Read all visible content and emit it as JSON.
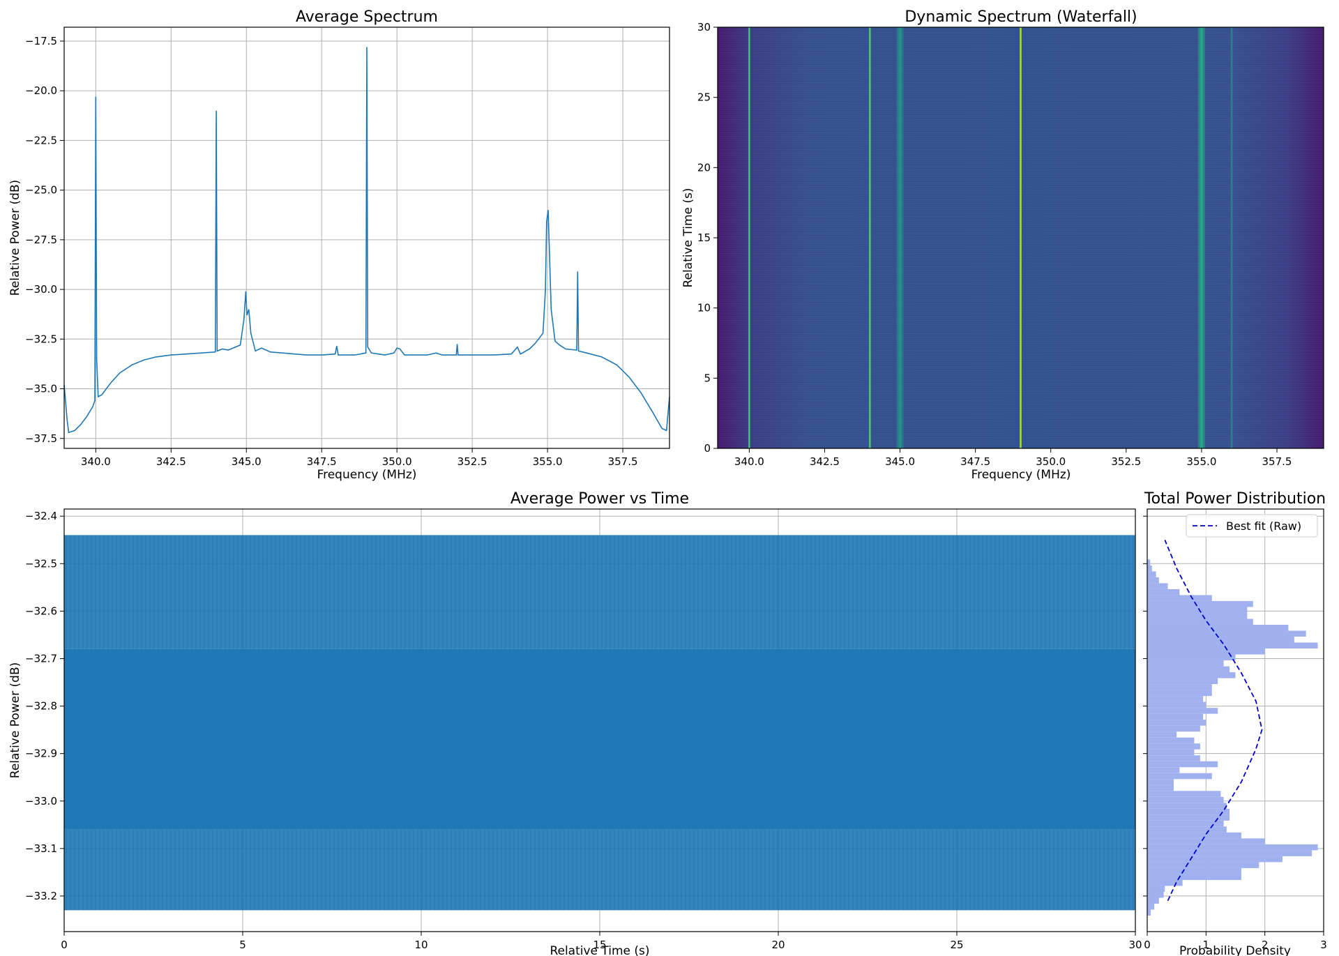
{
  "chart_data": [
    {
      "id": "avg-spectrum",
      "type": "line",
      "title": "Average Spectrum",
      "xlabel": "Frequency (MHz)",
      "ylabel": "Relative Power (dB)",
      "xlim": [
        338.95,
        359.05
      ],
      "ylim": [
        -38.0,
        -16.8
      ],
      "grid": true,
      "xticks": [
        {
          "v": 340.0,
          "label": "340.0"
        },
        {
          "v": 342.5,
          "label": "342.5"
        },
        {
          "v": 345.0,
          "label": "345.0"
        },
        {
          "v": 347.5,
          "label": "347.5"
        },
        {
          "v": 350.0,
          "label": "350.0"
        },
        {
          "v": 352.5,
          "label": "352.5"
        },
        {
          "v": 355.0,
          "label": "355.0"
        },
        {
          "v": 357.5,
          "label": "357.5"
        }
      ],
      "yticks": [
        {
          "v": -17.5,
          "label": "−17.5"
        },
        {
          "v": -20.0,
          "label": "−20.0"
        },
        {
          "v": -22.5,
          "label": "−22.5"
        },
        {
          "v": -25.0,
          "label": "−25.0"
        },
        {
          "v": -27.5,
          "label": "−27.5"
        },
        {
          "v": -30.0,
          "label": "−30.0"
        },
        {
          "v": -32.5,
          "label": "−32.5"
        },
        {
          "v": -35.0,
          "label": "−35.0"
        },
        {
          "v": -37.5,
          "label": "−37.5"
        }
      ],
      "series": [
        {
          "color": "#1f77b4",
          "points": [
            [
              338.95,
              -34.8
            ],
            [
              339.05,
              -36.6
            ],
            [
              339.1,
              -37.2
            ],
            [
              339.3,
              -37.1
            ],
            [
              339.5,
              -36.8
            ],
            [
              339.7,
              -36.4
            ],
            [
              339.9,
              -35.9
            ],
            [
              339.97,
              -35.6
            ],
            [
              340.0,
              -20.3
            ],
            [
              340.03,
              -33.5
            ],
            [
              340.08,
              -35.4
            ],
            [
              340.2,
              -35.3
            ],
            [
              340.5,
              -34.7
            ],
            [
              340.8,
              -34.2
            ],
            [
              341.2,
              -33.8
            ],
            [
              341.6,
              -33.55
            ],
            [
              342.0,
              -33.4
            ],
            [
              342.5,
              -33.3
            ],
            [
              343.0,
              -33.25
            ],
            [
              343.5,
              -33.2
            ],
            [
              343.97,
              -33.15
            ],
            [
              344.0,
              -21.0
            ],
            [
              344.03,
              -33.1
            ],
            [
              344.2,
              -33.0
            ],
            [
              344.4,
              -33.05
            ],
            [
              344.8,
              -32.8
            ],
            [
              344.92,
              -31.5
            ],
            [
              344.98,
              -30.1
            ],
            [
              345.02,
              -31.3
            ],
            [
              345.08,
              -31.0
            ],
            [
              345.15,
              -32.2
            ],
            [
              345.3,
              -33.1
            ],
            [
              345.5,
              -32.95
            ],
            [
              345.8,
              -33.15
            ],
            [
              346.2,
              -33.2
            ],
            [
              346.6,
              -33.25
            ],
            [
              347.0,
              -33.3
            ],
            [
              347.5,
              -33.3
            ],
            [
              347.95,
              -33.25
            ],
            [
              348.0,
              -32.85
            ],
            [
              348.05,
              -33.3
            ],
            [
              348.6,
              -33.3
            ],
            [
              348.97,
              -33.2
            ],
            [
              349.0,
              -17.8
            ],
            [
              349.03,
              -32.9
            ],
            [
              349.15,
              -33.2
            ],
            [
              349.6,
              -33.3
            ],
            [
              349.9,
              -33.2
            ],
            [
              350.0,
              -32.95
            ],
            [
              350.1,
              -33.0
            ],
            [
              350.25,
              -33.3
            ],
            [
              350.7,
              -33.3
            ],
            [
              351.0,
              -33.3
            ],
            [
              351.3,
              -33.2
            ],
            [
              351.5,
              -33.3
            ],
            [
              351.97,
              -33.3
            ],
            [
              352.0,
              -32.75
            ],
            [
              352.03,
              -33.3
            ],
            [
              352.6,
              -33.3
            ],
            [
              353.2,
              -33.3
            ],
            [
              353.8,
              -33.25
            ],
            [
              354.0,
              -32.9
            ],
            [
              354.1,
              -33.25
            ],
            [
              354.4,
              -33.0
            ],
            [
              354.6,
              -32.7
            ],
            [
              354.85,
              -32.2
            ],
            [
              354.93,
              -30.0
            ],
            [
              354.97,
              -26.6
            ],
            [
              355.02,
              -26.0
            ],
            [
              355.07,
              -28.4
            ],
            [
              355.12,
              -31.0
            ],
            [
              355.25,
              -32.6
            ],
            [
              355.4,
              -32.8
            ],
            [
              355.6,
              -33.0
            ],
            [
              355.97,
              -33.05
            ],
            [
              356.0,
              -29.1
            ],
            [
              356.03,
              -33.1
            ],
            [
              356.3,
              -33.2
            ],
            [
              356.8,
              -33.4
            ],
            [
              357.3,
              -33.8
            ],
            [
              357.7,
              -34.4
            ],
            [
              358.1,
              -35.2
            ],
            [
              358.5,
              -36.2
            ],
            [
              358.8,
              -37.0
            ],
            [
              358.95,
              -37.1
            ],
            [
              359.05,
              -35.4
            ]
          ]
        }
      ]
    },
    {
      "id": "waterfall",
      "type": "heatmap",
      "title": "Dynamic Spectrum (Waterfall)",
      "xlabel": "Frequency (MHz)",
      "ylabel": "Relative Time (s)",
      "xlim": [
        338.95,
        359.05
      ],
      "ylim": [
        0,
        30
      ],
      "grid": false,
      "colormap": "viridis",
      "background_color": "#2f4f8f",
      "edge_color": "#45196e",
      "xticks": [
        {
          "v": 340.0,
          "label": "340.0"
        },
        {
          "v": 342.5,
          "label": "342.5"
        },
        {
          "v": 345.0,
          "label": "345.0"
        },
        {
          "v": 347.5,
          "label": "347.5"
        },
        {
          "v": 350.0,
          "label": "350.0"
        },
        {
          "v": 352.5,
          "label": "352.5"
        },
        {
          "v": 355.0,
          "label": "355.0"
        },
        {
          "v": 357.5,
          "label": "357.5"
        }
      ],
      "yticks": [
        {
          "v": 0,
          "label": "0"
        },
        {
          "v": 5,
          "label": "5"
        },
        {
          "v": 10,
          "label": "10"
        },
        {
          "v": 15,
          "label": "15"
        },
        {
          "v": 20,
          "label": "20"
        },
        {
          "v": 25,
          "label": "25"
        },
        {
          "v": 30,
          "label": "30"
        }
      ],
      "lines": [
        {
          "freq": 340.0,
          "color": "#3cc373"
        },
        {
          "freq": 344.0,
          "color": "#45c96e"
        },
        {
          "freq": 345.0,
          "color": "#24958b"
        },
        {
          "freq": 349.0,
          "color": "#a8db34"
        },
        {
          "freq": 355.0,
          "color": "#22a884"
        },
        {
          "freq": 356.0,
          "color": "#2a7f8e"
        }
      ]
    },
    {
      "id": "power-time",
      "type": "line",
      "title": "Average Power vs Time",
      "xlabel": "Relative Time (s)",
      "ylabel": "Relative Power (dB)",
      "xlim": [
        0,
        30
      ],
      "ylim": [
        -33.275,
        -32.385
      ],
      "grid": true,
      "band": {
        "lower": -33.06,
        "upper": -32.68
      },
      "envelope": {
        "min": -33.23,
        "max": -32.44
      },
      "xticks": [
        {
          "v": 0,
          "label": "0"
        },
        {
          "v": 5,
          "label": "5"
        },
        {
          "v": 10,
          "label": "10"
        },
        {
          "v": 15,
          "label": "15"
        },
        {
          "v": 20,
          "label": "20"
        },
        {
          "v": 25,
          "label": "25"
        },
        {
          "v": 30,
          "label": "30"
        }
      ],
      "yticks": [
        {
          "v": -32.4,
          "label": "−32.4"
        },
        {
          "v": -32.5,
          "label": "−32.5"
        },
        {
          "v": -32.6,
          "label": "−32.6"
        },
        {
          "v": -32.7,
          "label": "−32.7"
        },
        {
          "v": -32.8,
          "label": "−32.8"
        },
        {
          "v": -32.9,
          "label": "−32.9"
        },
        {
          "v": -33.0,
          "label": "−33.0"
        },
        {
          "v": -33.1,
          "label": "−33.1"
        },
        {
          "v": -33.2,
          "label": "−33.2"
        }
      ],
      "series": [
        {
          "color": "#1f77b4"
        }
      ]
    },
    {
      "id": "power-dist",
      "type": "bar",
      "title": "Total Power Distribution",
      "xlabel": "Probability Density",
      "ylabel": "",
      "xlim": [
        0,
        3
      ],
      "ylim": [
        -33.275,
        -32.385
      ],
      "grid": true,
      "xticks": [
        {
          "v": 0,
          "label": "0"
        },
        {
          "v": 1,
          "label": "1"
        },
        {
          "v": 2,
          "label": "2"
        },
        {
          "v": 3,
          "label": "3"
        }
      ],
      "bin_width": 0.0125,
      "bins": [
        [
          -33.235,
          0.06
        ],
        [
          -33.2225,
          0.12
        ],
        [
          -33.21,
          0.2
        ],
        [
          -33.1975,
          0.28
        ],
        [
          -33.185,
          0.3
        ],
        [
          -33.1725,
          0.6
        ],
        [
          -33.16,
          1.6
        ],
        [
          -33.1475,
          1.6
        ],
        [
          -33.135,
          1.9
        ],
        [
          -33.1225,
          2.3
        ],
        [
          -33.11,
          2.8
        ],
        [
          -33.0975,
          2.9
        ],
        [
          -33.085,
          2.0
        ],
        [
          -33.0725,
          1.6
        ],
        [
          -33.06,
          1.35
        ],
        [
          -33.0475,
          1.3
        ],
        [
          -33.035,
          1.4
        ],
        [
          -33.0225,
          1.4
        ],
        [
          -33.01,
          1.35
        ],
        [
          -32.9975,
          1.3
        ],
        [
          -32.985,
          1.25
        ],
        [
          -32.9725,
          0.45
        ],
        [
          -32.96,
          0.45
        ],
        [
          -32.9475,
          1.1
        ],
        [
          -32.935,
          0.55
        ],
        [
          -32.9225,
          1.2
        ],
        [
          -32.91,
          0.9
        ],
        [
          -32.8975,
          0.8
        ],
        [
          -32.885,
          0.9
        ],
        [
          -32.8725,
          0.8
        ],
        [
          -32.86,
          0.5
        ],
        [
          -32.8475,
          0.9
        ],
        [
          -32.835,
          1.0
        ],
        [
          -32.8225,
          0.95
        ],
        [
          -32.81,
          1.2
        ],
        [
          -32.7975,
          1.0
        ],
        [
          -32.785,
          0.95
        ],
        [
          -32.7725,
          1.1
        ],
        [
          -32.76,
          1.1
        ],
        [
          -32.7475,
          1.2
        ],
        [
          -32.735,
          1.5
        ],
        [
          -32.7225,
          1.4
        ],
        [
          -32.71,
          1.3
        ],
        [
          -32.6975,
          1.5
        ],
        [
          -32.685,
          2.0
        ],
        [
          -32.6725,
          2.9
        ],
        [
          -32.66,
          2.5
        ],
        [
          -32.6475,
          2.7
        ],
        [
          -32.635,
          2.4
        ],
        [
          -32.6225,
          1.8
        ],
        [
          -32.61,
          1.7
        ],
        [
          -32.5975,
          1.7
        ],
        [
          -32.585,
          1.8
        ],
        [
          -32.5725,
          1.1
        ],
        [
          -32.56,
          0.55
        ],
        [
          -32.5475,
          0.35
        ],
        [
          -32.535,
          0.2
        ],
        [
          -32.5225,
          0.15
        ],
        [
          -32.51,
          0.08
        ],
        [
          -32.4975,
          0.05
        ]
      ],
      "bar_color": "#a1b1ef",
      "fit": {
        "name": "Best fit (Raw)",
        "color": "#0000cc",
        "points": [
          [
            0.35,
            -33.21
          ],
          [
            0.5,
            -33.17
          ],
          [
            0.75,
            -33.12
          ],
          [
            1.0,
            -33.07
          ],
          [
            1.3,
            -33.02
          ],
          [
            1.6,
            -32.96
          ],
          [
            1.85,
            -32.89
          ],
          [
            1.95,
            -32.85
          ],
          [
            1.85,
            -32.79
          ],
          [
            1.6,
            -32.73
          ],
          [
            1.3,
            -32.67
          ],
          [
            1.0,
            -32.62
          ],
          [
            0.75,
            -32.57
          ],
          [
            0.5,
            -32.51
          ],
          [
            0.3,
            -32.45
          ]
        ]
      }
    }
  ]
}
